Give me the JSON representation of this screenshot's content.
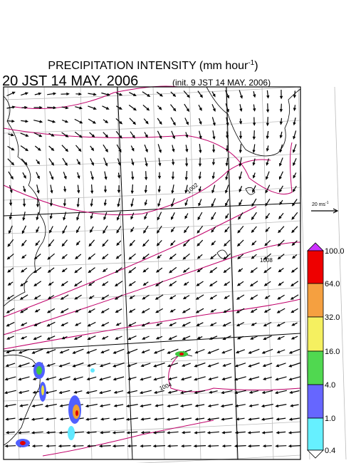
{
  "header": {
    "title": "PRECIPITATION INTENSITY (mm hour",
    "title_exponent": "-1",
    "title_end": ")",
    "valid_time": "20 JST 14 MAY. 2006",
    "init_time": "(init. 9 JST 14 MAY. 2006)"
  },
  "reference_vector": {
    "label": "20 ms",
    "exponent": "-1"
  },
  "colorbar": {
    "labels": [
      "100.0",
      "64.0",
      "32.0",
      "16.0",
      "4.0",
      "1.0",
      "0.4"
    ]
  },
  "contour_labels": [
    "1002",
    "1008",
    "1004"
  ]
}
